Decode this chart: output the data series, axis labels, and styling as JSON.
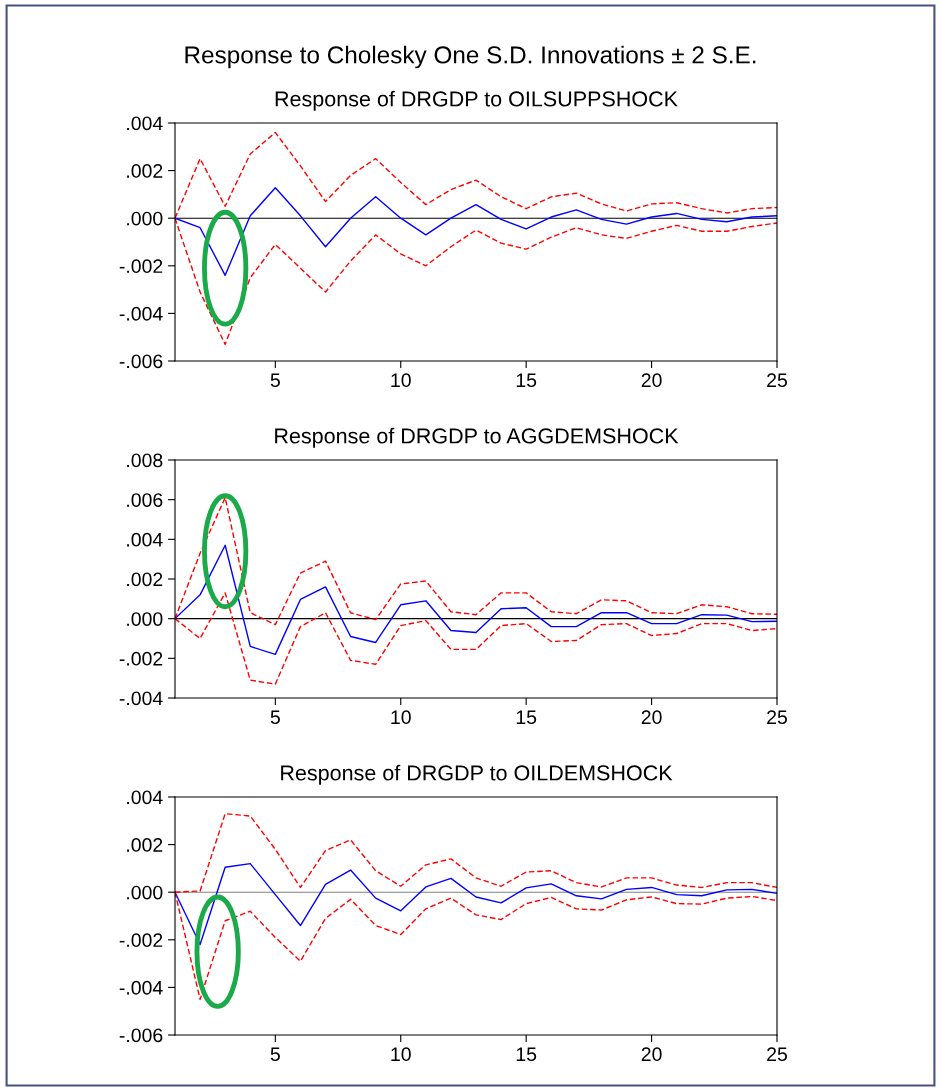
{
  "chart_data": [
    {
      "type": "line",
      "title": "Response to Cholesky One S.D. Innovations ± 2 S.E.",
      "subtitle": "Response of DRGDP to OILSUPPSHOCK",
      "x": [
        1,
        2,
        3,
        4,
        5,
        6,
        7,
        8,
        9,
        10,
        11,
        12,
        13,
        14,
        15,
        16,
        17,
        18,
        19,
        20,
        21,
        22,
        23,
        24,
        25
      ],
      "xlim": [
        1,
        25
      ],
      "xticks": [
        5,
        10,
        15,
        20,
        25
      ],
      "ylim": [
        -0.006,
        0.004
      ],
      "yticks": [
        {
          "value": -0.006,
          "label": "-.006"
        },
        {
          "value": -0.004,
          "label": "-.004"
        },
        {
          "value": -0.002,
          "label": "-.002"
        },
        {
          "value": 0,
          "label": ".000"
        },
        {
          "value": 0.002,
          "label": ".002"
        },
        {
          "value": 0.004,
          "label": ".004"
        }
      ],
      "ref_lines": [
        {
          "axis": "y",
          "value": 0,
          "color": "#000000"
        }
      ],
      "grid": false,
      "legend": false,
      "series": [
        {
          "color": "#0000ff",
          "line_style": "solid",
          "values": [
            0,
            -0.0004,
            -0.0024,
            0.0001,
            0.00128,
            0.0001,
            -0.0012,
            0.0,
            0.0009,
            0.0,
            -0.0007,
            0.0,
            0.00057,
            -5e-05,
            -0.00045,
            5e-05,
            0.00035,
            -5e-05,
            -0.00025,
            5e-05,
            0.0002,
            -5e-05,
            -0.00015,
            5e-05,
            0.0001
          ]
        },
        {
          "color": "#ff0000",
          "line_style": "dashed",
          "values": [
            0,
            0.0025,
            0.0005,
            0.0027,
            0.0036,
            0.0022,
            0.0007,
            0.0018,
            0.0025,
            0.0015,
            0.00057,
            0.0012,
            0.0016,
            0.0009,
            0.0004,
            0.0009,
            0.00105,
            0.0006,
            0.0003,
            0.0006,
            0.00065,
            0.0004,
            0.00022,
            0.0004,
            0.00045
          ]
        },
        {
          "color": "#ff0000",
          "line_style": "dashed",
          "values": [
            0,
            -0.0031,
            -0.0053,
            -0.0025,
            -0.0011,
            -0.0021,
            -0.0031,
            -0.0018,
            -0.0007,
            -0.0015,
            -0.002,
            -0.0012,
            -0.0005,
            -0.00105,
            -0.0013,
            -0.0008,
            -0.0004,
            -0.0007,
            -0.00085,
            -0.00055,
            -0.0003,
            -0.00055,
            -0.00055,
            -0.00035,
            -0.0002
          ]
        }
      ]
    },
    {
      "type": "line",
      "title": "Response of DRGDP to AGGDEMSHOCK",
      "x": [
        1,
        2,
        3,
        4,
        5,
        6,
        7,
        8,
        9,
        10,
        11,
        12,
        13,
        14,
        15,
        16,
        17,
        18,
        19,
        20,
        21,
        22,
        23,
        24,
        25
      ],
      "xlim": [
        1,
        25
      ],
      "xticks": [
        5,
        10,
        15,
        20,
        25
      ],
      "ylim": [
        -0.004,
        0.008
      ],
      "yticks": [
        {
          "value": -0.004,
          "label": "-.004"
        },
        {
          "value": -0.002,
          "label": "-.002"
        },
        {
          "value": 0,
          "label": ".000"
        },
        {
          "value": 0.002,
          "label": ".002"
        },
        {
          "value": 0.004,
          "label": ".004"
        },
        {
          "value": 0.006,
          "label": ".006"
        },
        {
          "value": 0.008,
          "label": ".008"
        }
      ],
      "ref_lines": [
        {
          "axis": "y",
          "value": 0,
          "color": "#000000"
        }
      ],
      "grid": false,
      "legend": false,
      "series": [
        {
          "color": "#0000ff",
          "line_style": "solid",
          "values": [
            0,
            0.0012,
            0.0037,
            -0.0014,
            -0.0018,
            0.00097,
            0.0016,
            -0.0009,
            -0.0012,
            0.0007,
            0.0009,
            -0.0006,
            -0.0007,
            0.0005,
            0.00055,
            -0.0004,
            -0.0004,
            0.0003,
            0.0003,
            -0.00025,
            -0.00025,
            0.0002,
            0.00018,
            -0.00015,
            -0.00013
          ]
        },
        {
          "color": "#ff0000",
          "line_style": "dashed",
          "values": [
            0,
            0.0033,
            0.0061,
            0.0003,
            -0.0003,
            0.0023,
            0.0029,
            0.0003,
            -5e-05,
            0.00175,
            0.0019,
            0.00035,
            0.0002,
            0.0013,
            0.0013,
            0.00035,
            0.00025,
            0.00095,
            0.0009,
            0.0003,
            0.00025,
            0.0007,
            0.0006,
            0.00025,
            0.00022
          ]
        },
        {
          "color": "#ff0000",
          "line_style": "dashed",
          "values": [
            0,
            -0.001,
            0.0013,
            -0.0031,
            -0.0033,
            -0.0004,
            0.0003,
            -0.0021,
            -0.0023,
            -0.00035,
            -0.0001,
            -0.00155,
            -0.00155,
            -0.00035,
            -0.00025,
            -0.00115,
            -0.0011,
            -0.0003,
            -0.00025,
            -0.00085,
            -0.00075,
            -0.00025,
            -0.00025,
            -0.0006,
            -0.0005
          ]
        }
      ]
    },
    {
      "type": "line",
      "title": "Response of DRGDP to OILDEMSHOCK",
      "x": [
        1,
        2,
        3,
        4,
        5,
        6,
        7,
        8,
        9,
        10,
        11,
        12,
        13,
        14,
        15,
        16,
        17,
        18,
        19,
        20,
        21,
        22,
        23,
        24,
        25
      ],
      "xlim": [
        1,
        25
      ],
      "xticks": [
        5,
        10,
        15,
        20,
        25
      ],
      "ylim": [
        -0.006,
        0.004
      ],
      "yticks": [
        {
          "value": -0.006,
          "label": "-.006"
        },
        {
          "value": -0.004,
          "label": "-.004"
        },
        {
          "value": -0.002,
          "label": "-.002"
        },
        {
          "value": 0,
          "label": ".000"
        },
        {
          "value": 0.002,
          "label": ".002"
        },
        {
          "value": 0.004,
          "label": ".004"
        }
      ],
      "ref_lines": [
        {
          "axis": "y",
          "value": 0,
          "color": "#808080"
        }
      ],
      "grid": false,
      "legend": false,
      "series": [
        {
          "color": "#0000ff",
          "line_style": "solid",
          "values": [
            0,
            -0.0022,
            0.00105,
            0.0012,
            -0.0001,
            -0.0014,
            0.00033,
            0.00093,
            -0.00025,
            -0.00078,
            0.00022,
            0.00058,
            -0.0002,
            -0.00045,
            0.00018,
            0.00035,
            -0.00015,
            -0.00028,
            0.00012,
            0.0002,
            -0.0001,
            -0.00015,
            0.0001,
            0.00012,
            -5e-05
          ]
        },
        {
          "color": "#ff0000",
          "line_style": "dashed",
          "values": [
            0,
            5e-05,
            0.0033,
            0.0032,
            0.0018,
            0.0002,
            0.00175,
            0.0022,
            0.0009,
            0.00025,
            0.00115,
            0.0014,
            0.0006,
            0.00025,
            0.00085,
            0.0009,
            0.0004,
            0.00022,
            0.0006,
            0.0006,
            0.0003,
            0.0002,
            0.0004,
            0.0004,
            0.0002
          ]
        },
        {
          "color": "#ff0000",
          "line_style": "dashed",
          "values": [
            0,
            -0.0045,
            -0.0012,
            -0.0008,
            -0.0019,
            -0.0029,
            -0.0011,
            -0.0003,
            -0.0014,
            -0.00178,
            -0.0007,
            -0.00025,
            -0.00095,
            -0.00115,
            -0.00048,
            -0.00022,
            -0.0007,
            -0.00075,
            -0.00032,
            -0.0002,
            -0.00048,
            -0.0005,
            -0.00025,
            -0.00018,
            -0.00035
          ]
        }
      ]
    }
  ]
}
